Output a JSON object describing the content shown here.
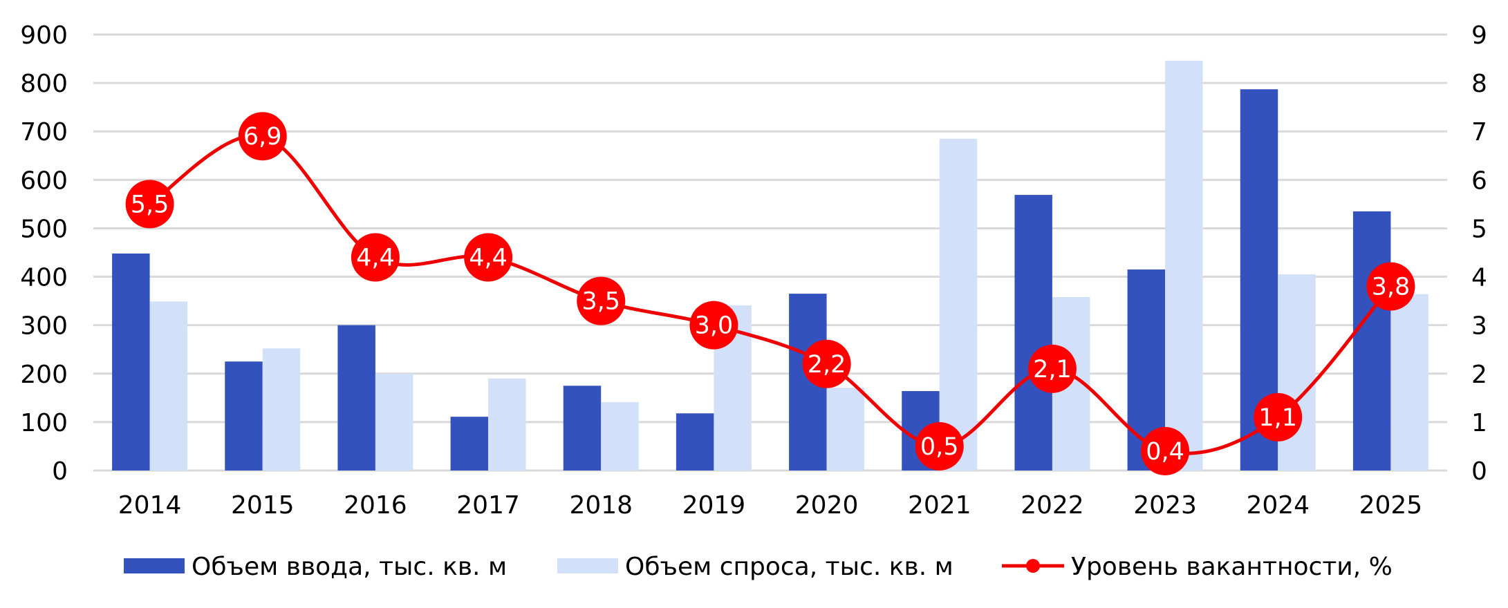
{
  "chart_data": {
    "type": "bar+line",
    "title": "",
    "categories": [
      "2014",
      "2015",
      "2016",
      "2017",
      "2018",
      "2019",
      "2020",
      "2021",
      "2022",
      "2023",
      "2024",
      "2025"
    ],
    "series": [
      {
        "name": "Объем ввода, тыс. кв. м",
        "type": "bar",
        "axis": "left",
        "color": "#3452BE",
        "values": [
          448,
          225,
          300,
          111,
          175,
          118,
          365,
          164,
          569,
          415,
          787,
          535
        ]
      },
      {
        "name": "Объем спроса, тыс. кв. м",
        "type": "bar",
        "axis": "left",
        "color": "#D3E0FA",
        "values": [
          349,
          252,
          200,
          190,
          141,
          341,
          171,
          685,
          358,
          846,
          405,
          364
        ]
      },
      {
        "name": "Уровень вакантности, %",
        "type": "line",
        "axis": "right",
        "color": "#EE0000",
        "marker_color": "#FF0000",
        "values": [
          5.5,
          6.9,
          4.4,
          4.4,
          3.5,
          3.0,
          2.2,
          0.5,
          2.1,
          0.4,
          1.1,
          3.8
        ],
        "data_labels": [
          "5,5",
          "6,9",
          "4,4",
          "4,4",
          "3,5",
          "3,0",
          "2,2",
          "0,5",
          "2,1",
          "0,4",
          "1,1",
          "3,8"
        ]
      }
    ],
    "xlabel": "",
    "ylabel": "",
    "y_left": {
      "min": 0,
      "max": 900,
      "step": 100,
      "ticks": [
        "0",
        "100",
        "200",
        "300",
        "400",
        "500",
        "600",
        "700",
        "800",
        "900"
      ]
    },
    "y_right": {
      "min": 0,
      "max": 9,
      "step": 1,
      "ticks": [
        "0",
        "1",
        "2",
        "3",
        "4",
        "5",
        "6",
        "7",
        "8",
        "9"
      ]
    },
    "grid": true,
    "grid_color": "#D9D9D9",
    "legend_position": "bottom"
  },
  "legend": {
    "items": [
      {
        "label": "Объем ввода, тыс. кв. м",
        "kind": "bar-swatch"
      },
      {
        "label": "Объем спроса, тыс. кв. м",
        "kind": "bar-swatch"
      },
      {
        "label": "Уровень вакантности, %",
        "kind": "line-marker"
      }
    ]
  }
}
